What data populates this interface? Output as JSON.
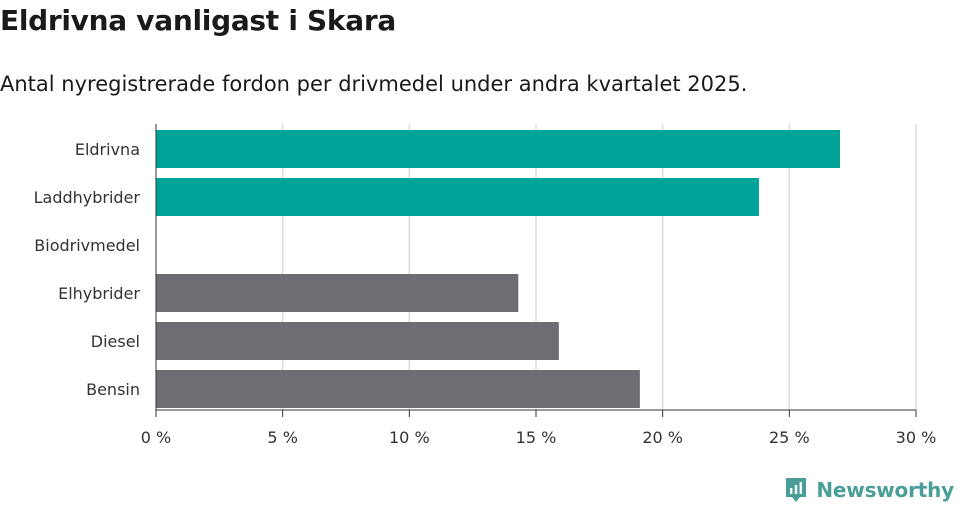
{
  "header": {
    "title": "Eldrivna vanligast i Skara",
    "subtitle": "Antal nyregistrerade fordon per drivmedel under andra kvartalet 2025."
  },
  "brand": {
    "name": "Newsworthy",
    "icon": "newsworthy-logo-icon",
    "color": "#4a9e98"
  },
  "colors": {
    "highlight": "#00a398",
    "default": "#6e6d74",
    "grid": "#dddddd"
  },
  "chart_data": {
    "type": "bar",
    "orientation": "horizontal",
    "categories": [
      "Eldrivna",
      "Laddhybrider",
      "Biodrivmedel",
      "Elhybrider",
      "Diesel",
      "Bensin"
    ],
    "values": [
      27.0,
      23.8,
      0,
      14.3,
      15.9,
      19.1
    ],
    "highlighted": [
      true,
      true,
      false,
      false,
      false,
      false
    ],
    "xlim": [
      0,
      30
    ],
    "xticks": [
      0,
      5,
      10,
      15,
      20,
      25,
      30
    ],
    "xtick_labels": [
      "0 %",
      "5 %",
      "10 %",
      "15 %",
      "20 %",
      "25 %",
      "30 %"
    ],
    "grid": true
  }
}
